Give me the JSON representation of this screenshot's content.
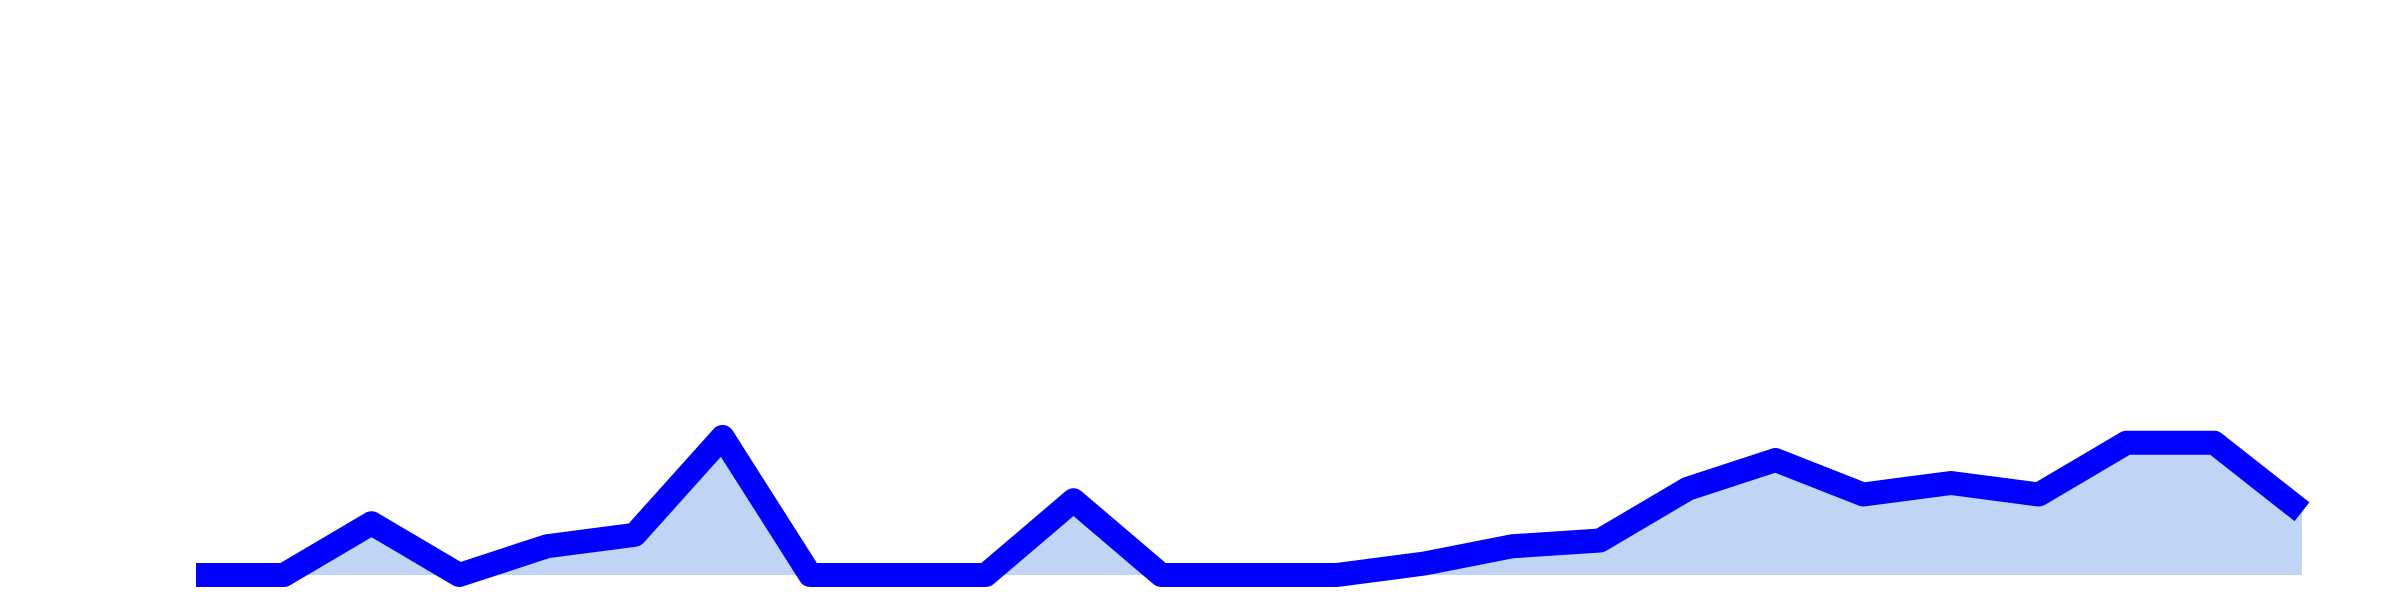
{
  "chart_data": {
    "type": "area",
    "title": "",
    "xlabel": "",
    "ylabel": "",
    "grid": false,
    "legend": "none",
    "ylim": [
      0,
      100
    ],
    "x": [
      0,
      1,
      2,
      3,
      4,
      5,
      6,
      7,
      8,
      9,
      10,
      11,
      12,
      13,
      14,
      15,
      16,
      17,
      18,
      19,
      20,
      21,
      22,
      23,
      24
    ],
    "series": [
      {
        "values": [
          0,
          0,
          9,
          0,
          5,
          7,
          24,
          0,
          0,
          0,
          13,
          0,
          0,
          0,
          2,
          5,
          6,
          15,
          20,
          14,
          16,
          14,
          23,
          23,
          11
        ]
      }
    ],
    "colors": {
      "line": "#0000ff",
      "fill": "#c0d4f5"
    }
  }
}
